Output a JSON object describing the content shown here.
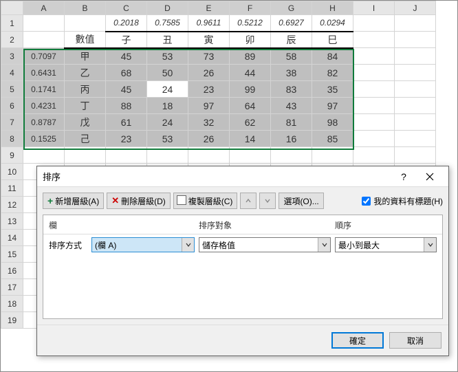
{
  "columns": [
    "A",
    "B",
    "C",
    "D",
    "E",
    "F",
    "G",
    "H",
    "I",
    "J"
  ],
  "row_numbers": [
    1,
    2,
    3,
    4,
    5,
    6,
    7,
    8,
    9,
    10,
    11,
    12,
    13,
    14,
    15,
    16,
    17,
    18,
    19
  ],
  "top_decimals": [
    "0.2018",
    "0.7585",
    "0.9611",
    "0.5212",
    "0.6927",
    "0.0294"
  ],
  "hdr_label": "數值",
  "col_hdrs": [
    "子",
    "丑",
    "寅",
    "卯",
    "辰",
    "巳"
  ],
  "rows": [
    {
      "a": "0.7097",
      "b": "甲",
      "v": [
        "45",
        "53",
        "73",
        "89",
        "58",
        "84"
      ]
    },
    {
      "a": "0.6431",
      "b": "乙",
      "v": [
        "68",
        "50",
        "26",
        "44",
        "38",
        "82"
      ]
    },
    {
      "a": "0.1741",
      "b": "丙",
      "v": [
        "45",
        "24",
        "23",
        "99",
        "83",
        "35"
      ]
    },
    {
      "a": "0.4231",
      "b": "丁",
      "v": [
        "88",
        "18",
        "97",
        "64",
        "43",
        "97"
      ]
    },
    {
      "a": "0.8787",
      "b": "戊",
      "v": [
        "61",
        "24",
        "32",
        "62",
        "81",
        "98"
      ]
    },
    {
      "a": "0.1525",
      "b": "己",
      "v": [
        "23",
        "53",
        "26",
        "14",
        "16",
        "85"
      ]
    }
  ],
  "dialog": {
    "title": "排序",
    "help": "?",
    "add": "新增層級(A)",
    "remove": "刪除層級(D)",
    "copy": "複製層級(C)",
    "options": "選項(O)...",
    "checkbox": "我的資料有標題(H)",
    "col_hdr": "欄",
    "sorton_hdr": "排序對象",
    "order_hdr": "順序",
    "sortby_label": "排序方式",
    "sortby_value": "(欄 A)",
    "sorton_value": "儲存格值",
    "order_value": "最小到最大",
    "ok": "確定",
    "cancel": "取消"
  }
}
